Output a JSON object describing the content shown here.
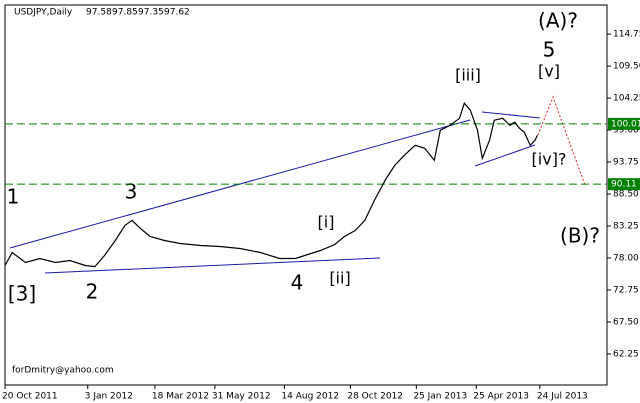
{
  "chart_data": {
    "type": "line",
    "symbol": "USDJPY,Daily",
    "ohlc": [
      97.58,
      97.85,
      97.35,
      97.62
    ],
    "watermark": "forDmitry@yahoo.com",
    "color": "#000000",
    "x": [
      0,
      6,
      17,
      29,
      42,
      54,
      67,
      75,
      83,
      92,
      100,
      106,
      113,
      121,
      133,
      146,
      163,
      179,
      196,
      213,
      229,
      242,
      250,
      263,
      275,
      283,
      292,
      300,
      308,
      317,
      325,
      333,
      342,
      350,
      358,
      363,
      371,
      379,
      383,
      388,
      394,
      398,
      404,
      408,
      415,
      421,
      425,
      429,
      433,
      438,
      442,
      444
    ],
    "values": [
      76.76,
      78.89,
      77.25,
      77.91,
      77.25,
      77.58,
      76.76,
      76.59,
      78.4,
      80.87,
      83.34,
      84.16,
      82.84,
      81.53,
      80.87,
      80.37,
      80.05,
      79.88,
      79.55,
      78.89,
      77.91,
      77.91,
      78.4,
      79.22,
      80.21,
      81.53,
      82.51,
      84.16,
      87.45,
      90.74,
      93.2,
      94.85,
      96.49,
      96.0,
      94.03,
      98.96,
      99.78,
      100.93,
      103.4,
      102.25,
      98.96,
      94.36,
      97.32,
      100.61,
      100.93,
      99.78,
      100.28,
      99.29,
      98.63,
      96.49,
      97.32,
      98.14
    ],
    "xlim": [
      0,
      502
    ],
    "xticks": [
      {
        "value": 0,
        "label": "20 Oct 2011"
      },
      {
        "value": 69,
        "label": "3 Jan 2012"
      },
      {
        "value": 125,
        "label": "18 Mar 2012"
      },
      {
        "value": 175,
        "label": "31 May 2012"
      },
      {
        "value": 233,
        "label": "14 Aug 2012"
      },
      {
        "value": 288,
        "label": "28 Oct 2012"
      },
      {
        "value": 343,
        "label": "25 Jan 2013"
      },
      {
        "value": 393,
        "label": "25 Apr 2013"
      },
      {
        "value": 446,
        "label": "24 Jul 2013"
      }
    ],
    "ylim": [
      57.15,
      119.52
    ],
    "yticks": [
      62.25,
      {
        "value": 67.5,
        "label": "67.50"
      },
      72.75,
      {
        "value": 78,
        "label": "78.00"
      },
      83.25,
      {
        "value": 88.5,
        "label": "88.50"
      },
      93.75,
      {
        "value": 99,
        "label": "99.00"
      },
      104.25,
      {
        "value": 109.5,
        "label": "109.50"
      },
      114.75
    ],
    "levels": [
      {
        "value": 100.01,
        "color": "#008000"
      },
      {
        "value": 90.11,
        "color": "#008000"
      }
    ],
    "annotations": [
      {
        "text": "(A)?",
        "color": "#1a1aa6"
      },
      {
        "text": "5",
        "color": "#a0302e"
      },
      {
        "text": "[v]",
        "color": "#2e8b2e"
      },
      {
        "text": "[iii]",
        "color": "#2e8b2e"
      },
      {
        "text": "[iv]?",
        "color": "#2e8b2e"
      },
      {
        "text": "(B)?",
        "color": "#1a1aa6"
      },
      {
        "text": "[i]",
        "color": "#2e8b2e"
      },
      {
        "text": "[ii]",
        "color": "#2e8b2e"
      },
      {
        "text": "4",
        "color": "#a0302e"
      },
      {
        "text": "3",
        "color": "#a0302e"
      },
      {
        "text": "2",
        "color": "#a0302e"
      },
      {
        "text": "1",
        "color": "#a0302e"
      },
      {
        "text": "[3]",
        "color": "#2e8b2e"
      }
    ]
  }
}
